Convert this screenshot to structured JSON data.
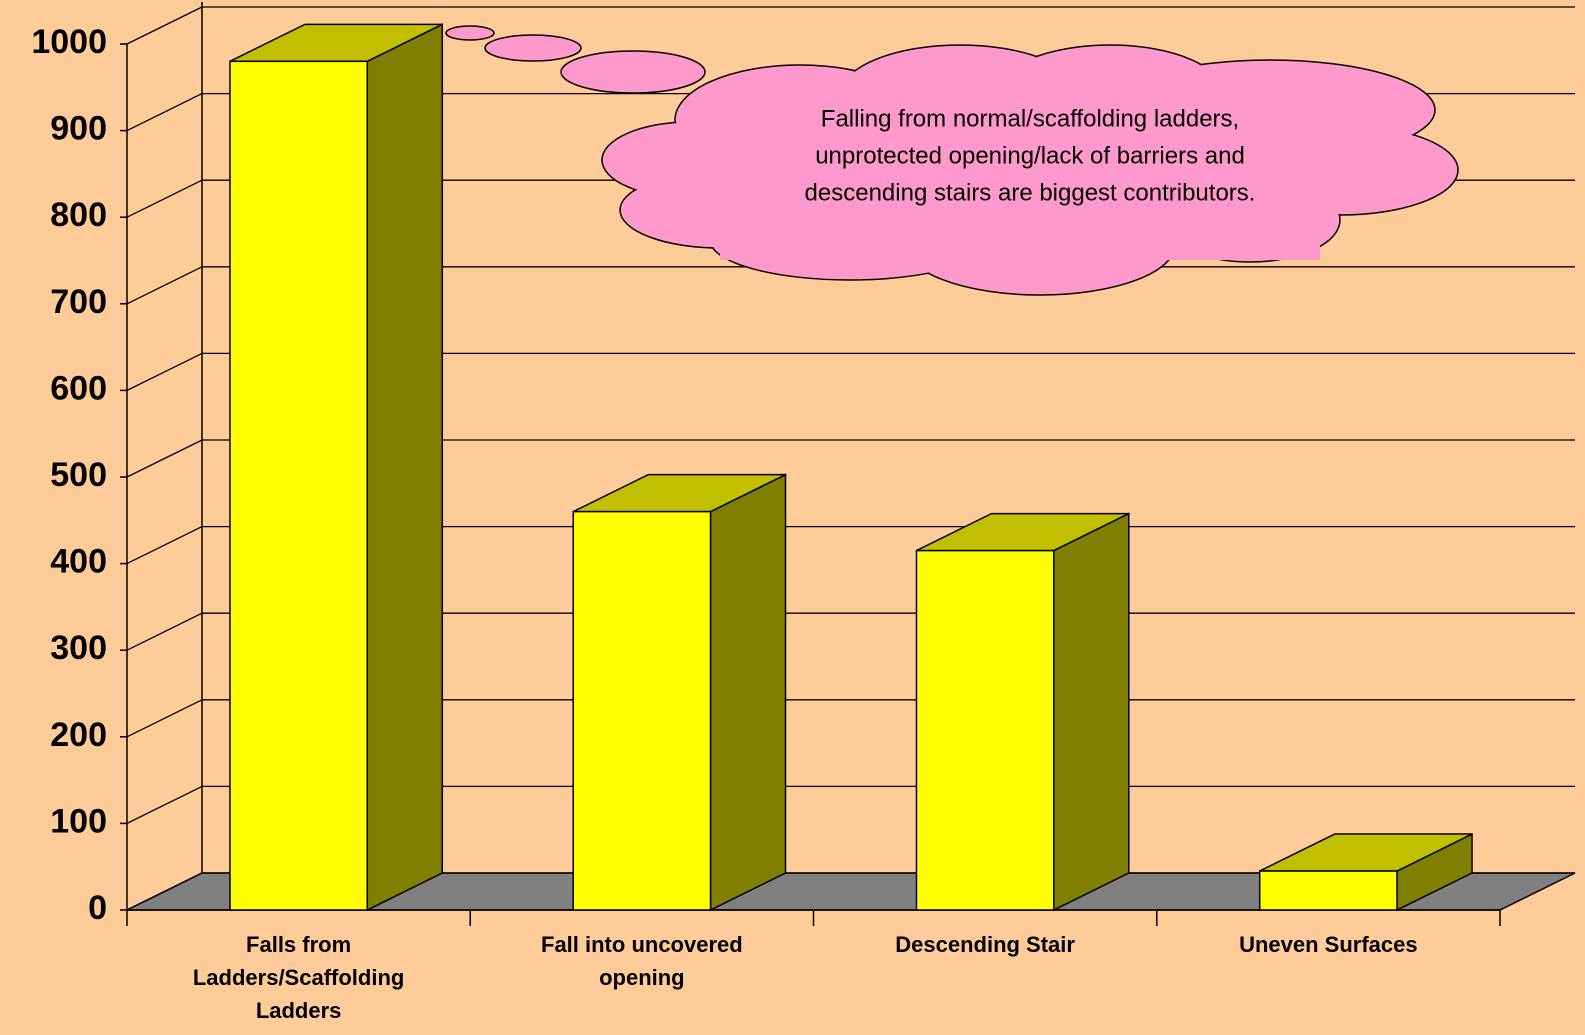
{
  "chart_data": {
    "type": "bar3d",
    "categories": [
      "Falls from Ladders/Scaffolding Ladders",
      "Fall into uncovered opening",
      "Descending Stair",
      "Uneven Surfaces"
    ],
    "values": [
      980,
      460,
      415,
      45
    ],
    "color": "#ffff00",
    "top_color": "#c0c000",
    "side_color": "#808000",
    "floor_color": "#808080",
    "ylim": [
      0,
      1000
    ],
    "yticks": [
      0,
      100,
      200,
      300,
      400,
      500,
      600,
      700,
      800,
      900,
      1000
    ],
    "grid": true,
    "annotation": [
      "Falling from normal/scaffolding ladders,",
      "unprotected opening/lack of barriers and",
      "descending stairs are biggest contributors."
    ]
  }
}
